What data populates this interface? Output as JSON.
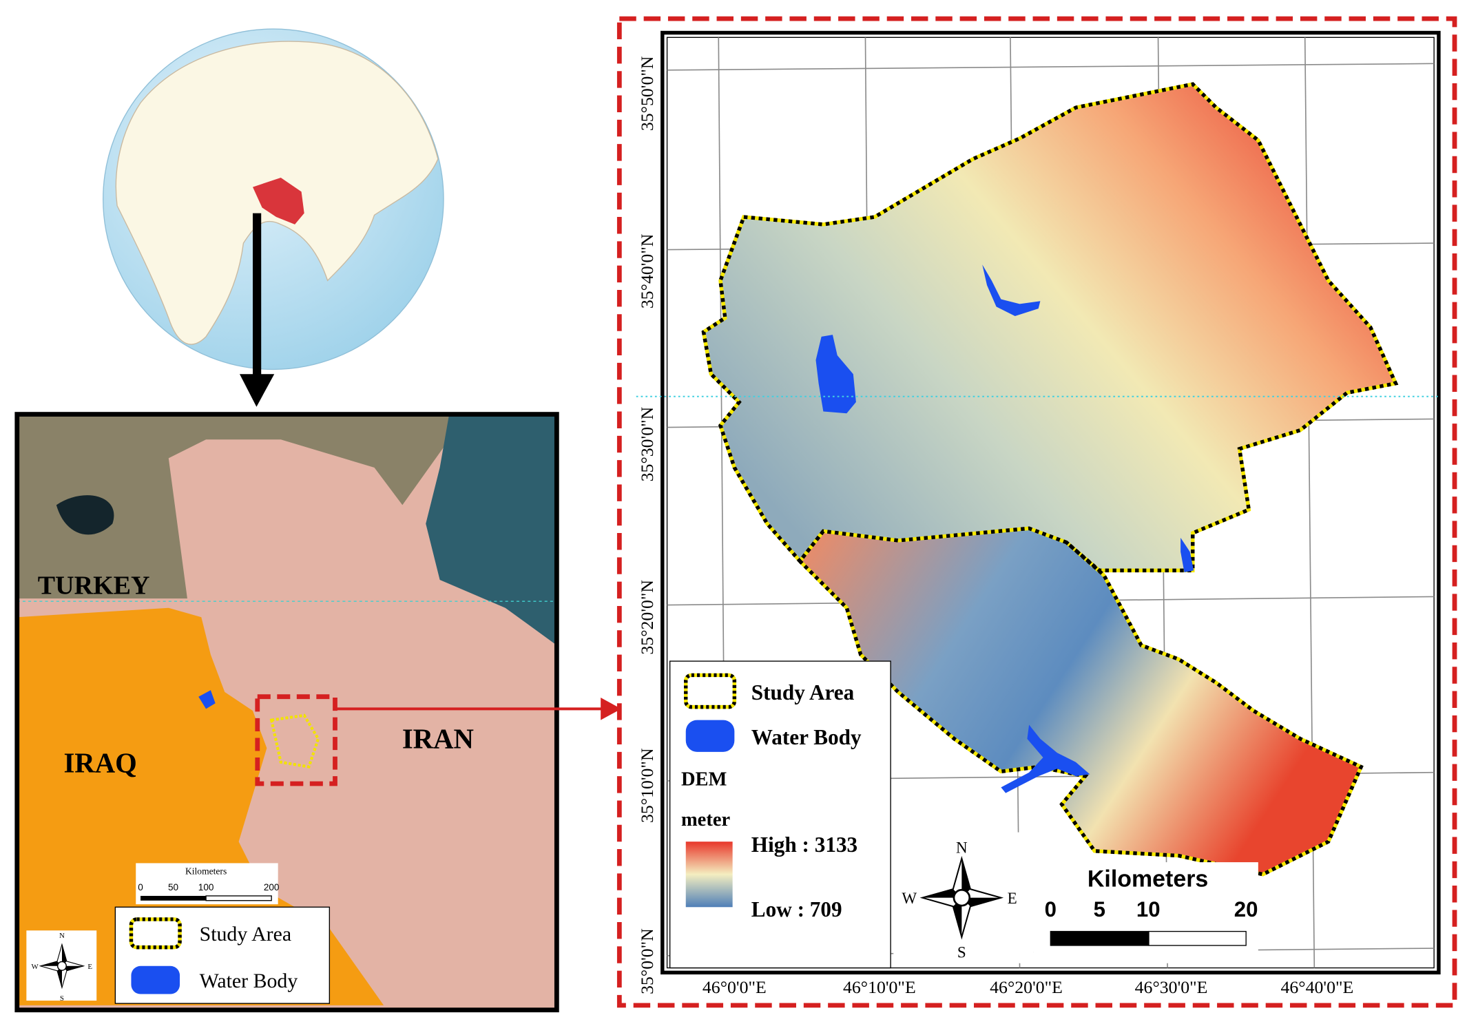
{
  "inset_map": {
    "country_labels": [
      "TURKEY",
      "IRAQ",
      "IRAN"
    ],
    "scale_bar": {
      "title": "Kilometers",
      "ticks": [
        0,
        50,
        100,
        200
      ]
    },
    "legend": [
      "Study Area",
      "Water Body"
    ],
    "compass": {
      "n": "N",
      "s": "S",
      "w": "W",
      "e": "E"
    }
  },
  "main_map": {
    "latitude_labels": [
      "35°50'0\"N",
      "35°40'0\"N",
      "35°30'0\"N",
      "35°20'0\"N",
      "35°10'0\"N",
      "35°0'0\"N"
    ],
    "longitude_labels": [
      "46°0'0\"E",
      "46°10'0\"E",
      "46°20'0\"E",
      "46°30'0\"E",
      "46°40'0\"E"
    ],
    "legend": {
      "items": [
        "Study Area",
        "Water Body"
      ],
      "dem_title": "DEM",
      "dem_unit": "meter",
      "high": "High : 3133",
      "low": "Low : 709"
    },
    "scale_bar": {
      "title": "Kilometers",
      "ticks": [
        0,
        5,
        10,
        20
      ]
    },
    "compass": {
      "n": "N",
      "s": "S",
      "w": "W",
      "e": "E"
    }
  }
}
